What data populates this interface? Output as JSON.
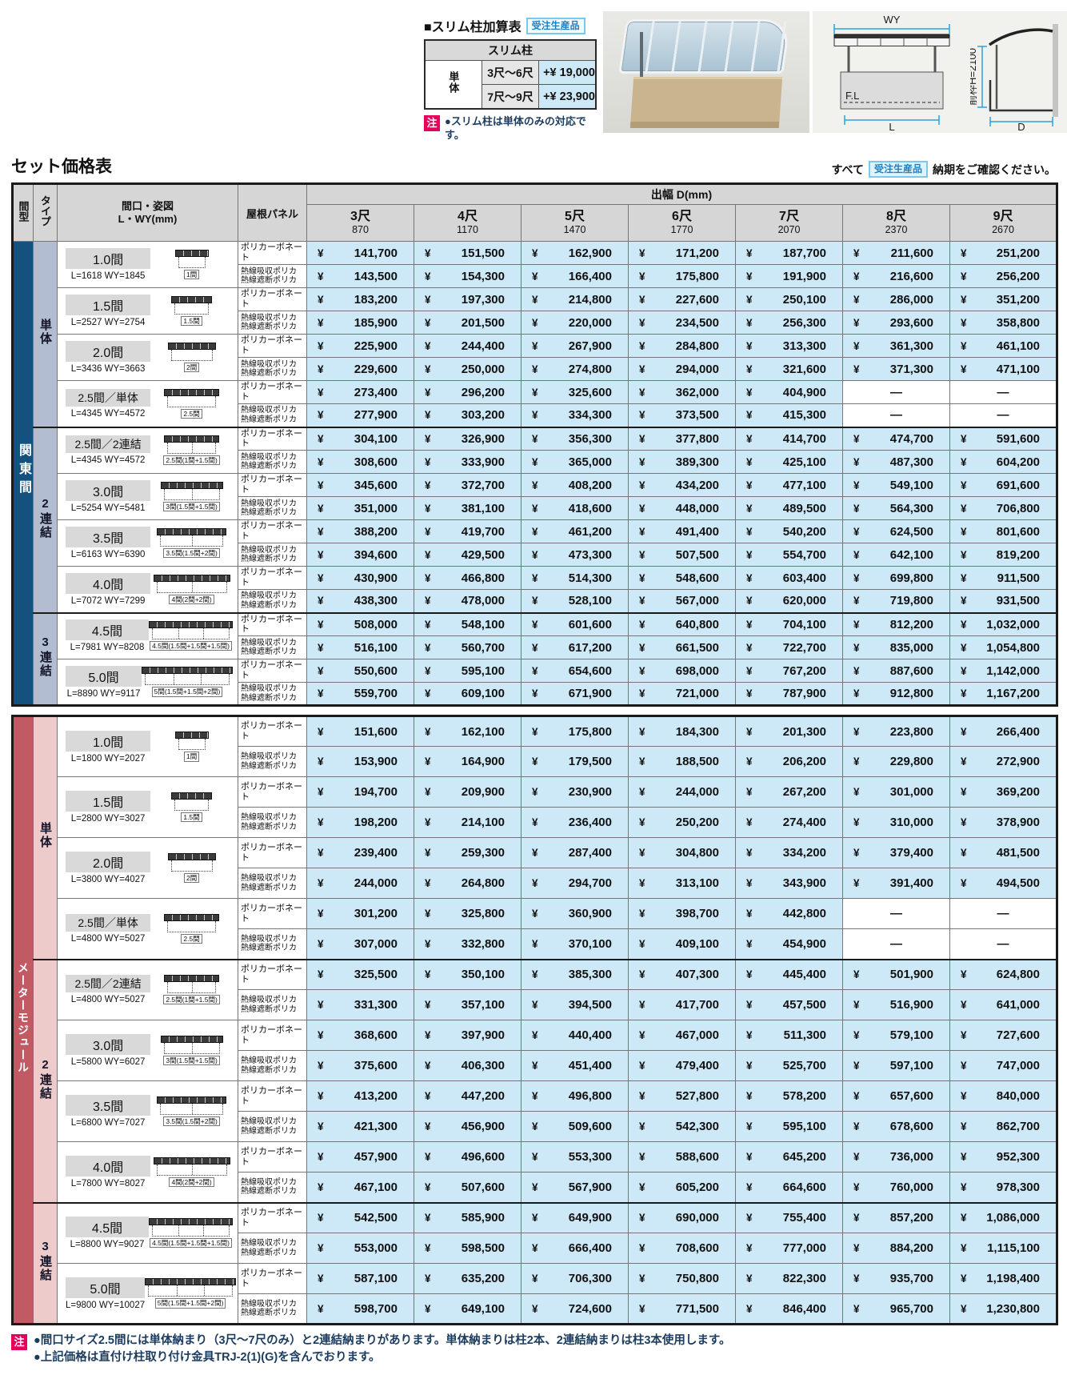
{
  "colors": {
    "kanto_bar": "#15517e",
    "kanto_type": "#b3bdd1",
    "meter_bar": "#c25a63",
    "meter_type": "#edcbca",
    "price_cell_bg": "#cde8f7",
    "badge_blue_text": "#1f7fc0",
    "note_badge_pink": "#e6005c",
    "dimension_cyan": "#2aa3da"
  },
  "slim": {
    "title": "■スリム柱加算表",
    "badge": "受注生産品",
    "header": "スリム柱",
    "row_header": "単体",
    "rows": [
      {
        "range": "3尺～6尺",
        "price": "+¥ 19,000"
      },
      {
        "range": "7尺～9尺",
        "price": "+¥ 23,900"
      }
    ],
    "note_badge": "注",
    "note": "●スリム柱は単体のみの対応です。"
  },
  "diagrams": {
    "front": {
      "top_label": "WY",
      "floor_label": "F.L",
      "bottom_label": "L"
    },
    "side": {
      "height_label": "前枠H=2100",
      "bottom_label": "D"
    }
  },
  "pricing": {
    "title": "セット価格表",
    "lead_prefix": "すべて",
    "lead_badge": "受注生産品",
    "lead_suffix": "納期をご確認ください。",
    "dash": "—",
    "header": {
      "col_gata": "間型",
      "col_type": "タイプ",
      "col_size_line1": "間口・姿図",
      "col_size_line2": "L・WY(mm)",
      "col_panel": "屋根パネル",
      "depth_label": "出幅 D(mm)",
      "depth_cols": [
        {
          "shaku": "3尺",
          "mm": "870"
        },
        {
          "shaku": "4尺",
          "mm": "1170"
        },
        {
          "shaku": "5尺",
          "mm": "1470"
        },
        {
          "shaku": "6尺",
          "mm": "1770"
        },
        {
          "shaku": "7尺",
          "mm": "2070"
        },
        {
          "shaku": "8尺",
          "mm": "2370"
        },
        {
          "shaku": "9尺",
          "mm": "2670"
        }
      ]
    },
    "panel_types": [
      "ポリカーボネート",
      "熱線吸収ポリカ\n熱線遮断ポリカ"
    ],
    "sections": [
      {
        "key": "kanto",
        "name": "関東間",
        "color": "#15517e",
        "type_color": "#b3bdd1",
        "groups": [
          {
            "type": "単体",
            "rows": [
              {
                "size": "1.0間",
                "dims": "L=1618 WY=1845",
                "sketch": "1間",
                "units": 1,
                "w": 1.0,
                "prices": [
                  [
                    "141,700",
                    "151,500",
                    "162,900",
                    "171,200",
                    "187,700",
                    "211,600",
                    "251,200"
                  ],
                  [
                    "143,500",
                    "154,300",
                    "166,400",
                    "175,800",
                    "191,900",
                    "216,600",
                    "256,200"
                  ]
                ]
              },
              {
                "size": "1.5間",
                "dims": "L=2527 WY=2754",
                "sketch": "1.5間",
                "units": 1,
                "w": 1.5,
                "prices": [
                  [
                    "183,200",
                    "197,300",
                    "214,800",
                    "227,600",
                    "250,100",
                    "286,000",
                    "351,200"
                  ],
                  [
                    "185,900",
                    "201,500",
                    "220,000",
                    "234,500",
                    "256,300",
                    "293,600",
                    "358,800"
                  ]
                ]
              },
              {
                "size": "2.0間",
                "dims": "L=3436 WY=3663",
                "sketch": "2間",
                "units": 1,
                "w": 2.0,
                "prices": [
                  [
                    "225,900",
                    "244,400",
                    "267,900",
                    "284,800",
                    "313,300",
                    "361,300",
                    "461,100"
                  ],
                  [
                    "229,600",
                    "250,000",
                    "274,800",
                    "294,000",
                    "321,600",
                    "371,300",
                    "471,100"
                  ]
                ]
              },
              {
                "size": "2.5間／単体",
                "dims": "L=4345 WY=4572",
                "sketch": "2.5間",
                "units": 1,
                "w": 2.5,
                "prices": [
                  [
                    "273,400",
                    "296,200",
                    "325,600",
                    "362,000",
                    "404,900",
                    null,
                    null
                  ],
                  [
                    "277,900",
                    "303,200",
                    "334,300",
                    "373,500",
                    "415,300",
                    null,
                    null
                  ]
                ]
              }
            ]
          },
          {
            "type": "2連結",
            "rows": [
              {
                "size": "2.5間／2連結",
                "dims": "L=4345 WY=4572",
                "sketch": "2.5間(1間+1.5間)",
                "units": 2,
                "w": 2.5,
                "prices": [
                  [
                    "304,100",
                    "326,900",
                    "356,300",
                    "377,800",
                    "414,700",
                    "474,700",
                    "591,600"
                  ],
                  [
                    "308,600",
                    "333,900",
                    "365,000",
                    "389,300",
                    "425,100",
                    "487,300",
                    "604,200"
                  ]
                ]
              },
              {
                "size": "3.0間",
                "dims": "L=5254 WY=5481",
                "sketch": "3間(1.5間+1.5間)",
                "units": 2,
                "w": 3.0,
                "prices": [
                  [
                    "345,600",
                    "372,700",
                    "408,200",
                    "434,200",
                    "477,100",
                    "549,100",
                    "691,600"
                  ],
                  [
                    "351,000",
                    "381,100",
                    "418,600",
                    "448,000",
                    "489,500",
                    "564,300",
                    "706,800"
                  ]
                ]
              },
              {
                "size": "3.5間",
                "dims": "L=6163 WY=6390",
                "sketch": "3.5間(1.5間+2間)",
                "units": 2,
                "w": 3.5,
                "prices": [
                  [
                    "388,200",
                    "419,700",
                    "461,200",
                    "491,400",
                    "540,200",
                    "624,500",
                    "801,600"
                  ],
                  [
                    "394,600",
                    "429,500",
                    "473,300",
                    "507,500",
                    "554,700",
                    "642,100",
                    "819,200"
                  ]
                ]
              },
              {
                "size": "4.0間",
                "dims": "L=7072 WY=7299",
                "sketch": "4間(2間+2間)",
                "units": 2,
                "w": 4.0,
                "prices": [
                  [
                    "430,900",
                    "466,800",
                    "514,300",
                    "548,600",
                    "603,400",
                    "699,800",
                    "911,500"
                  ],
                  [
                    "438,300",
                    "478,000",
                    "528,100",
                    "567,000",
                    "620,000",
                    "719,800",
                    "931,500"
                  ]
                ]
              }
            ]
          },
          {
            "type": "3連結",
            "rows": [
              {
                "size": "4.5間",
                "dims": "L=7981 WY=8208",
                "sketch": "4.5間(1.5間+1.5間+1.5間)",
                "units": 3,
                "w": 4.5,
                "prices": [
                  [
                    "508,000",
                    "548,100",
                    "601,600",
                    "640,800",
                    "704,100",
                    "812,200",
                    "1,032,000"
                  ],
                  [
                    "516,100",
                    "560,700",
                    "617,200",
                    "661,500",
                    "722,700",
                    "835,000",
                    "1,054,800"
                  ]
                ]
              },
              {
                "size": "5.0間",
                "dims": "L=8890 WY=9117",
                "sketch": "5間(1.5間+1.5間+2間)",
                "units": 3,
                "w": 5.0,
                "prices": [
                  [
                    "550,600",
                    "595,100",
                    "654,600",
                    "698,000",
                    "767,200",
                    "887,600",
                    "1,142,000"
                  ],
                  [
                    "559,700",
                    "609,100",
                    "671,900",
                    "721,000",
                    "787,900",
                    "912,800",
                    "1,167,200"
                  ]
                ]
              }
            ]
          }
        ]
      },
      {
        "key": "meter",
        "name": "メーターモジュール",
        "color": "#c25a63",
        "type_color": "#edcbca",
        "groups": [
          {
            "type": "単体",
            "rows": [
              {
                "size": "1.0間",
                "dims": "L=1800 WY=2027",
                "sketch": "1間",
                "units": 1,
                "w": 1.0,
                "prices": [
                  [
                    "151,600",
                    "162,100",
                    "175,800",
                    "184,300",
                    "201,300",
                    "223,800",
                    "266,400"
                  ],
                  [
                    "153,900",
                    "164,900",
                    "179,500",
                    "188,500",
                    "206,200",
                    "229,800",
                    "272,900"
                  ]
                ]
              },
              {
                "size": "1.5間",
                "dims": "L=2800 WY=3027",
                "sketch": "1.5間",
                "units": 1,
                "w": 1.5,
                "prices": [
                  [
                    "194,700",
                    "209,900",
                    "230,900",
                    "244,000",
                    "267,200",
                    "301,000",
                    "369,200"
                  ],
                  [
                    "198,200",
                    "214,100",
                    "236,400",
                    "250,200",
                    "274,400",
                    "310,000",
                    "378,900"
                  ]
                ]
              },
              {
                "size": "2.0間",
                "dims": "L=3800 WY=4027",
                "sketch": "2間",
                "units": 1,
                "w": 2.0,
                "prices": [
                  [
                    "239,400",
                    "259,300",
                    "287,400",
                    "304,800",
                    "334,200",
                    "379,400",
                    "481,500"
                  ],
                  [
                    "244,000",
                    "264,800",
                    "294,700",
                    "313,100",
                    "343,900",
                    "391,400",
                    "494,500"
                  ]
                ]
              },
              {
                "size": "2.5間／単体",
                "dims": "L=4800 WY=5027",
                "sketch": "2.5間",
                "units": 1,
                "w": 2.5,
                "prices": [
                  [
                    "301,200",
                    "325,800",
                    "360,900",
                    "398,700",
                    "442,800",
                    null,
                    null
                  ],
                  [
                    "307,000",
                    "332,800",
                    "370,100",
                    "409,100",
                    "454,900",
                    null,
                    null
                  ]
                ]
              }
            ]
          },
          {
            "type": "2連結",
            "rows": [
              {
                "size": "2.5間／2連結",
                "dims": "L=4800 WY=5027",
                "sketch": "2.5間(1間+1.5間)",
                "units": 2,
                "w": 2.5,
                "prices": [
                  [
                    "325,500",
                    "350,100",
                    "385,300",
                    "407,300",
                    "445,400",
                    "501,900",
                    "624,800"
                  ],
                  [
                    "331,300",
                    "357,100",
                    "394,500",
                    "417,700",
                    "457,500",
                    "516,900",
                    "641,000"
                  ]
                ]
              },
              {
                "size": "3.0間",
                "dims": "L=5800 WY=6027",
                "sketch": "3間(1.5間+1.5間)",
                "units": 2,
                "w": 3.0,
                "prices": [
                  [
                    "368,600",
                    "397,900",
                    "440,400",
                    "467,000",
                    "511,300",
                    "579,100",
                    "727,600"
                  ],
                  [
                    "375,600",
                    "406,300",
                    "451,400",
                    "479,400",
                    "525,700",
                    "597,100",
                    "747,000"
                  ]
                ]
              },
              {
                "size": "3.5間",
                "dims": "L=6800 WY=7027",
                "sketch": "3.5間(1.5間+2間)",
                "units": 2,
                "w": 3.5,
                "prices": [
                  [
                    "413,200",
                    "447,200",
                    "496,800",
                    "527,800",
                    "578,200",
                    "657,600",
                    "840,000"
                  ],
                  [
                    "421,300",
                    "456,900",
                    "509,600",
                    "542,300",
                    "595,100",
                    "678,600",
                    "862,700"
                  ]
                ]
              },
              {
                "size": "4.0間",
                "dims": "L=7800 WY=8027",
                "sketch": "4間(2間+2間)",
                "units": 2,
                "w": 4.0,
                "prices": [
                  [
                    "457,900",
                    "496,600",
                    "553,300",
                    "588,600",
                    "645,200",
                    "736,000",
                    "952,300"
                  ],
                  [
                    "467,100",
                    "507,600",
                    "567,900",
                    "605,200",
                    "664,600",
                    "760,000",
                    "978,300"
                  ]
                ]
              }
            ]
          },
          {
            "type": "3連結",
            "rows": [
              {
                "size": "4.5間",
                "dims": "L=8800 WY=9027",
                "sketch": "4.5間(1.5間+1.5間+1.5間)",
                "units": 3,
                "w": 4.5,
                "prices": [
                  [
                    "542,500",
                    "585,900",
                    "649,900",
                    "690,000",
                    "755,400",
                    "857,200",
                    "1,086,000"
                  ],
                  [
                    "553,000",
                    "598,500",
                    "666,400",
                    "708,600",
                    "777,000",
                    "884,200",
                    "1,115,100"
                  ]
                ]
              },
              {
                "size": "5.0間",
                "dims": "L=9800 WY=10027",
                "sketch": "5間(1.5間+1.5間+2間)",
                "units": 3,
                "w": 5.0,
                "prices": [
                  [
                    "587,100",
                    "635,200",
                    "706,300",
                    "750,800",
                    "822,300",
                    "935,700",
                    "1,198,400"
                  ],
                  [
                    "598,700",
                    "649,100",
                    "724,600",
                    "771,500",
                    "846,400",
                    "965,700",
                    "1,230,800"
                  ]
                ]
              }
            ]
          }
        ]
      }
    ]
  },
  "footnotes": {
    "badge": "注",
    "lines": [
      "●間口サイズ2.5間には単体納まり（3尺～7尺のみ）と2連結納まりがあります。単体納まりは柱2本、2連結納まりは柱3本使用します。",
      "●上記価格は直付け柱取り付け金具TRJ-2(1)(G)を含んでおります。"
    ]
  }
}
